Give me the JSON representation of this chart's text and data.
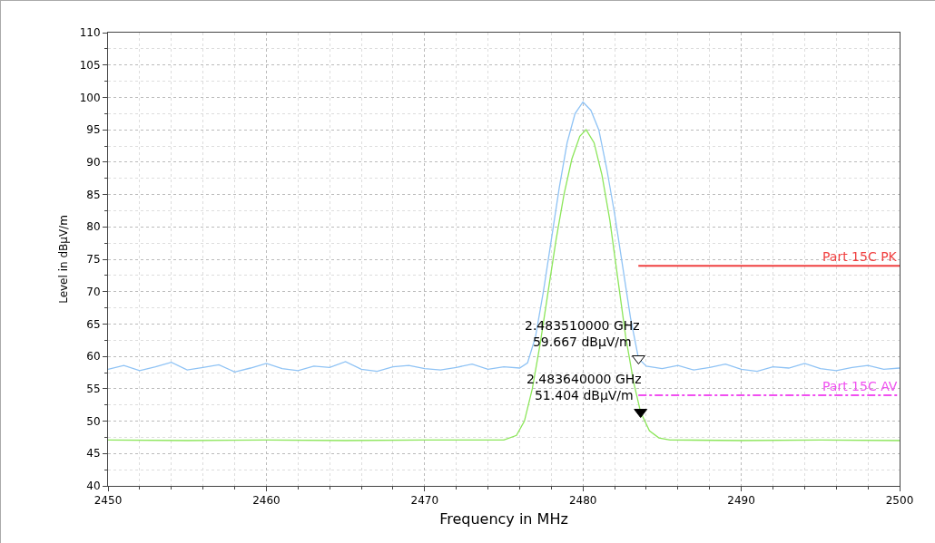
{
  "chart_data": {
    "type": "line",
    "xlabel": "Frequency in MHz",
    "ylabel": "Level in dBµV/m",
    "xlim": [
      2450,
      2500
    ],
    "xticks": [
      2450,
      2460,
      2470,
      2480,
      2490,
      2500
    ],
    "ylim": [
      40,
      110
    ],
    "yticks": [
      40,
      45,
      50,
      55,
      60,
      65,
      70,
      75,
      80,
      85,
      90,
      95,
      100,
      105,
      110
    ],
    "grid": true,
    "legend": false,
    "line_style": "solid",
    "series": [
      {
        "color": "#8fc3f5",
        "x": [
          2450,
          2451,
          2452,
          2453,
          2454,
          2455,
          2456,
          2457,
          2458,
          2459,
          2460,
          2461,
          2462,
          2463,
          2464,
          2465,
          2466,
          2467,
          2468,
          2469,
          2470,
          2471,
          2472,
          2473,
          2474,
          2475,
          2476,
          2476.5,
          2477,
          2477.5,
          2478,
          2478.5,
          2479,
          2479.5,
          2480,
          2480.5,
          2481,
          2481.5,
          2482,
          2482.5,
          2483,
          2483.51,
          2484,
          2485,
          2486,
          2487,
          2488,
          2489,
          2490,
          2491,
          2492,
          2493,
          2494,
          2495,
          2496,
          2497,
          2498,
          2499,
          2500
        ],
        "values": [
          58.0,
          58.6,
          57.8,
          58.4,
          59.1,
          57.9,
          58.3,
          58.7,
          57.6,
          58.2,
          58.9,
          58.1,
          57.8,
          58.5,
          58.3,
          59.2,
          58.0,
          57.7,
          58.4,
          58.6,
          58.1,
          57.9,
          58.3,
          58.8,
          58.0,
          58.4,
          58.2,
          59,
          63,
          70,
          78,
          86,
          93,
          97.5,
          99.3,
          98,
          95,
          89,
          82,
          74,
          66,
          59.667,
          58.5,
          58.1,
          58.6,
          57.9,
          58.3,
          58.8,
          58.0,
          57.7,
          58.4,
          58.2,
          58.9,
          58.1,
          57.8,
          58.3,
          58.6,
          58.0,
          58.2
        ]
      },
      {
        "color": "#8ce65a",
        "x": [
          2450,
          2455,
          2460,
          2465,
          2470,
          2475,
          2475.8,
          2476.3,
          2476.8,
          2477.3,
          2477.8,
          2478.3,
          2478.8,
          2479.3,
          2479.8,
          2480.2,
          2480.7,
          2481.2,
          2481.7,
          2482.2,
          2482.7,
          2483.2,
          2483.64,
          2484.2,
          2484.8,
          2485.5,
          2490,
          2495,
          2500
        ],
        "values": [
          47.1,
          47.0,
          47.1,
          47.0,
          47.1,
          47.1,
          47.8,
          50,
          55,
          62,
          70,
          78,
          85,
          90.5,
          94,
          95,
          93,
          88,
          81,
          72,
          63,
          56,
          51.404,
          48.5,
          47.4,
          47.1,
          47.0,
          47.1,
          47.0
        ]
      },
      {
        "name": "Part 15C PK",
        "color": "#f04040",
        "x": [
          2483.5,
          2500
        ],
        "values": [
          74,
          74
        ]
      },
      {
        "name": "Part 15C AV",
        "color": "#f050f0",
        "line_style": "dashed",
        "x": [
          2483.5,
          2500
        ],
        "values": [
          54,
          54
        ]
      },
      {
        "type": "scatter",
        "marker": "triangle",
        "color": "#ffffff",
        "x": [
          2483.51
        ],
        "values": [
          59.667
        ]
      },
      {
        "type": "scatter",
        "marker": "triangle",
        "color": "#000000",
        "x": [
          2483.64
        ],
        "values": [
          51.404
        ]
      }
    ],
    "annotations": [
      {
        "text": "2.483510000 GHz\n59.667 dBµV/m",
        "x": 2483.51,
        "y": 59.667
      },
      {
        "text": "2.483640000 GHz\n51.404 dBµV/m",
        "x": 2483.64,
        "y": 51.404
      }
    ]
  }
}
